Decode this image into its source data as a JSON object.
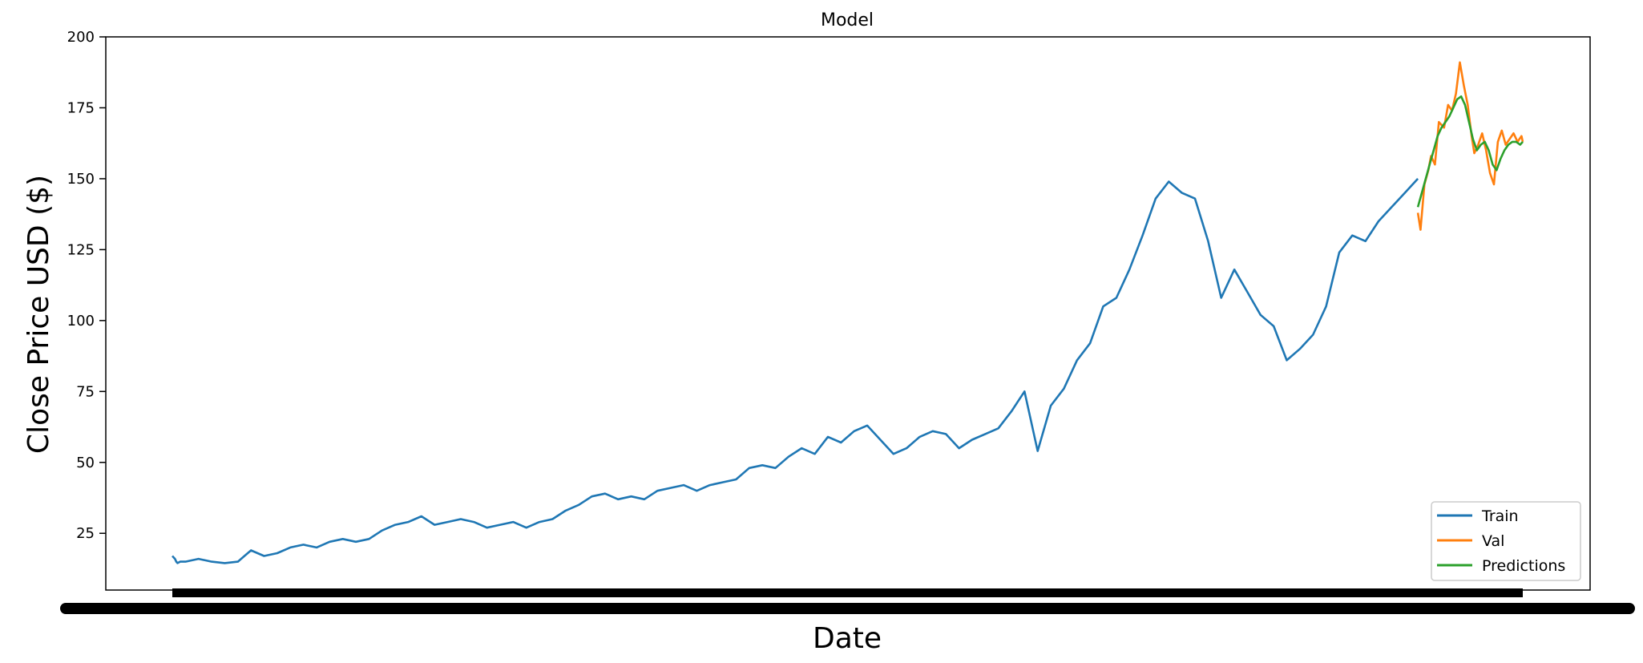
{
  "chart_data": {
    "type": "line",
    "title": "Model",
    "xlabel": "Date",
    "ylabel": "Close Price USD ($)",
    "ylim": [
      5,
      200
    ],
    "yticks": [
      25,
      50,
      75,
      100,
      125,
      150,
      175,
      200
    ],
    "grid": false,
    "legend": {
      "position": "lower-right",
      "entries": [
        "Train",
        "Val",
        "Predictions"
      ]
    },
    "colors": {
      "Train": "#1f77b4",
      "Val": "#ff7f0e",
      "Predictions": "#2ca02c"
    },
    "x_index_range": [
      0,
      1000
    ],
    "series": [
      {
        "name": "Train",
        "color": "#1f77b4",
        "x": [
          0,
          2,
          3,
          4,
          6,
          10,
          20,
          30,
          40,
          50,
          55,
          60,
          70,
          80,
          90,
          100,
          110,
          120,
          130,
          140,
          150,
          160,
          170,
          180,
          190,
          200,
          210,
          220,
          230,
          240,
          250,
          260,
          270,
          280,
          290,
          300,
          310,
          320,
          330,
          340,
          350,
          360,
          370,
          380,
          390,
          400,
          410,
          420,
          430,
          440,
          450,
          460,
          470,
          480,
          490,
          500,
          510,
          520,
          530,
          540,
          550,
          560,
          570,
          580,
          590,
          600,
          610,
          620,
          630,
          640,
          650,
          660,
          670,
          680,
          690,
          700,
          710,
          720,
          730,
          740,
          750,
          760,
          770,
          780,
          790,
          800,
          810,
          820,
          830,
          840,
          850,
          860,
          870,
          880,
          890,
          900,
          910,
          920,
          930,
          940,
          950
        ],
        "values": [
          17,
          16,
          15,
          14.5,
          15,
          15,
          16,
          15,
          14.5,
          15,
          17,
          19,
          17,
          18,
          20,
          21,
          20,
          22,
          23,
          22,
          23,
          26,
          28,
          29,
          31,
          28,
          29,
          30,
          29,
          27,
          28,
          29,
          27,
          29,
          30,
          33,
          35,
          38,
          39,
          37,
          38,
          37,
          40,
          41,
          42,
          40,
          42,
          43,
          44,
          48,
          49,
          48,
          52,
          55,
          53,
          59,
          57,
          61,
          63,
          58,
          53,
          55,
          59,
          61,
          60,
          55,
          58,
          60,
          62,
          68,
          75,
          54,
          70,
          76,
          86,
          92,
          105,
          108,
          118,
          130,
          143,
          149,
          145,
          143,
          128,
          108,
          118,
          110,
          102,
          98,
          86,
          90,
          95,
          105,
          124,
          130,
          128,
          135,
          140,
          145,
          150
        ]
      },
      {
        "name": "Val",
        "color": "#ff7f0e",
        "x": [
          950,
          952,
          955,
          958,
          960,
          963,
          966,
          970,
          973,
          976,
          979,
          982,
          985,
          988,
          991,
          993,
          996,
          999,
          1002,
          1005,
          1008,
          1011,
          1014,
          1017,
          1020,
          1023,
          1026,
          1029,
          1030
        ],
        "values": [
          138,
          132,
          148,
          153,
          158,
          155,
          170,
          168,
          176,
          174,
          180,
          191,
          183,
          176,
          165,
          159,
          162,
          166,
          160,
          152,
          148,
          163,
          167,
          162,
          164,
          166,
          163,
          165,
          163
        ]
      },
      {
        "name": "Predictions",
        "color": "#2ca02c",
        "x": [
          950,
          953,
          956,
          959,
          962,
          965,
          968,
          971,
          974,
          977,
          980,
          983,
          986,
          989,
          992,
          995,
          998,
          1001,
          1004,
          1007,
          1010,
          1013,
          1016,
          1019,
          1022,
          1025,
          1028,
          1030
        ],
        "values": [
          140,
          145,
          150,
          155,
          160,
          165,
          168,
          170,
          172,
          175,
          178,
          179,
          176,
          170,
          164,
          160,
          162,
          163,
          160,
          155,
          153,
          157,
          160,
          162,
          163,
          163,
          162,
          163
        ]
      }
    ]
  }
}
